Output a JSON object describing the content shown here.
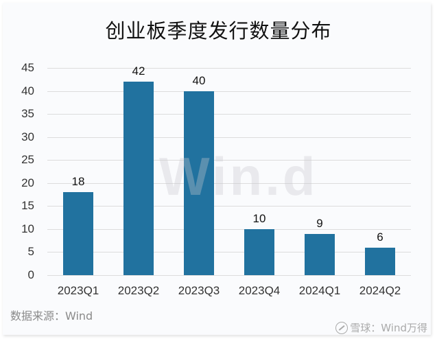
{
  "title": "创业板季度发行数量分布",
  "source": "数据来源：Wind",
  "credit": "雪球：Wind万得",
  "watermark": "Win.d",
  "colors": {
    "bar": "#21729f",
    "grid": "#dcdcdc",
    "background": "#fafbfd"
  },
  "y_ticks": [
    "45",
    "40",
    "35",
    "30",
    "25",
    "20",
    "15",
    "10",
    "5",
    "0"
  ],
  "bars": [
    {
      "category": "2023Q1",
      "value": "18"
    },
    {
      "category": "2023Q2",
      "value": "42"
    },
    {
      "category": "2023Q3",
      "value": "40"
    },
    {
      "category": "2023Q4",
      "value": "10"
    },
    {
      "category": "2024Q1",
      "value": "9"
    },
    {
      "category": "2024Q2",
      "value": "6"
    }
  ],
  "chart_data": {
    "type": "bar",
    "title": "创业板季度发行数量分布",
    "categories": [
      "2023Q1",
      "2023Q2",
      "2023Q3",
      "2023Q4",
      "2024Q1",
      "2024Q2"
    ],
    "values": [
      18,
      42,
      40,
      10,
      9,
      6
    ],
    "xlabel": "",
    "ylabel": "",
    "ylim": [
      0,
      45
    ],
    "yticks": [
      0,
      5,
      10,
      15,
      20,
      25,
      30,
      35,
      40,
      45
    ],
    "grid": true,
    "data_labels": true,
    "legend": null,
    "annotations": [
      "数据来源：Wind",
      "雪球：Wind万得"
    ]
  }
}
